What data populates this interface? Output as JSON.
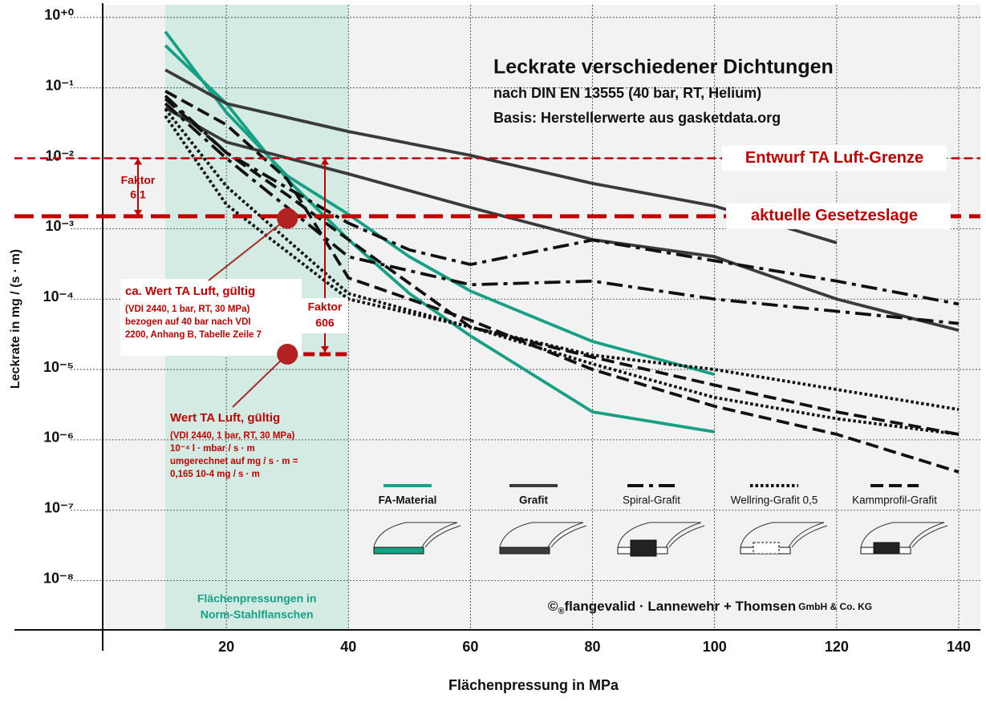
{
  "chart_data": {
    "type": "line",
    "title": "Leckrate verschiedener Dichtungen",
    "subtitle": [
      "nach DIN EN 13555 (40 bar, RT, Helium)",
      "Basis: Herstellerwerte aus gasketdata.org"
    ],
    "xlabel": "Flächenpressung in MPa",
    "ylabel": "Leckrate in mg / (s · m)",
    "xlim": [
      0,
      140
    ],
    "ylim": [
      2e-09,
      1.4
    ],
    "log_y": true,
    "grid": true,
    "xticks": [
      20,
      40,
      60,
      80,
      100,
      120,
      140
    ],
    "yticks": [
      {
        "value": 1,
        "label": "10⁺⁰"
      },
      {
        "value": 0.1,
        "label": "10⁻¹"
      },
      {
        "value": 0.01,
        "label": "10⁻²"
      },
      {
        "value": 0.001,
        "label": "10⁻³"
      },
      {
        "value": 0.0001,
        "label": "10⁻⁴"
      },
      {
        "value": 1e-05,
        "label": "10⁻⁵"
      },
      {
        "value": 1e-06,
        "label": "10⁻⁶"
      },
      {
        "value": 1e-07,
        "label": "10⁻⁷"
      },
      {
        "value": 1e-08,
        "label": "10⁻⁸"
      }
    ],
    "shade": {
      "xlim": [
        10,
        40
      ],
      "color": "#d3ebe3",
      "label": [
        "Flächenpressungen in",
        "Norm-Stahlflanschen"
      ]
    },
    "series": [
      {
        "name": "FA-Material",
        "color": "#17a084",
        "dash": "solid",
        "lines": [
          {
            "x": [
              10,
              20,
              30,
              40,
              50,
              60,
              80,
              100
            ],
            "values": [
              0.63,
              0.045,
              0.0056,
              0.0016,
              0.0004,
              0.00013,
              2.5e-05,
              8.5e-06
            ]
          },
          {
            "x": [
              10,
              20,
              30,
              40,
              50,
              60,
              80,
              100
            ],
            "values": [
              0.4,
              0.06,
              0.005,
              0.0007,
              0.00012,
              3e-05,
              2.5e-06,
              1.3e-06
            ]
          }
        ]
      },
      {
        "name": "Grafit",
        "color": "#3a3a3a",
        "dash": "solid",
        "lines": [
          {
            "x": [
              10,
              20,
              40,
              60,
              80,
              100,
              120
            ],
            "values": [
              0.18,
              0.06,
              0.024,
              0.011,
              0.0044,
              0.0021,
              0.00063
            ]
          },
          {
            "x": [
              10,
              20,
              40,
              60,
              80,
              100,
              120,
              140
            ],
            "values": [
              0.052,
              0.017,
              0.006,
              0.002,
              0.0007,
              0.0004,
              0.0001,
              3.6e-05
            ]
          }
        ]
      },
      {
        "name": "Spiral-Grafit",
        "color": "#111111",
        "dash": "dashdot",
        "lines": [
          {
            "x": [
              10,
              20,
              40,
              50,
              60,
              80,
              100,
              120,
              140
            ],
            "values": [
              0.077,
              0.012,
              0.0012,
              0.0005,
              0.00031,
              0.00069,
              0.00035,
              0.00018,
              8.5e-05
            ]
          },
          {
            "x": [
              10,
              20,
              30,
              40,
              60,
              80,
              100,
              140
            ],
            "values": [
              0.06,
              0.01,
              0.002,
              0.0004,
              0.00016,
              0.00018,
              0.0001,
              4.5e-05
            ]
          }
        ]
      },
      {
        "name": "Wellring-Grafit 0,5",
        "color": "#111111",
        "dash": "dotted",
        "lines": [
          {
            "x": [
              10,
              20,
              40,
              60,
              80,
              100,
              140
            ],
            "values": [
              0.04,
              0.0022,
              0.0001,
              4e-05,
              1.6e-05,
              1e-05,
              2.7e-06
            ]
          },
          {
            "x": [
              10,
              20,
              40,
              60,
              80,
              100,
              120,
              140
            ],
            "values": [
              0.05,
              0.004,
              0.00012,
              4e-05,
              1.2e-05,
              4e-06,
              2e-06,
              1.2e-06
            ]
          }
        ]
      },
      {
        "name": "Kammprofil-Grafit",
        "color": "#111111",
        "dash": "dashed",
        "lines": [
          {
            "x": [
              10,
              20,
              30,
              40,
              60,
              80,
              100,
              120,
              140
            ],
            "values": [
              0.07,
              0.012,
              0.003,
              0.0007,
              4e-05,
              1.5e-05,
              6e-06,
              2.5e-06,
              1.2e-06
            ]
          },
          {
            "x": [
              10,
              20,
              30,
              40,
              60,
              80,
              100,
              120,
              140
            ],
            "values": [
              0.09,
              0.03,
              0.005,
              0.0002,
              5e-05,
              1e-05,
              3e-06,
              1.2e-06,
              3.5e-07
            ]
          }
        ]
      }
    ],
    "reference_lines": [
      {
        "value": 0.01,
        "label": "Entwurf TA Luft-Grenze",
        "color": "#c00000"
      },
      {
        "value": 0.0015,
        "label": "aktuelle Gesetzeslage",
        "color": "#c00000"
      }
    ],
    "points": [
      {
        "x": 30,
        "value": 0.0014,
        "color": "#b22222",
        "label": [
          "ca. Wert TA Luft, gültig",
          "(VDI 2440, 1 bar, RT, 30 MPa)",
          "bezogen auf 40 bar nach VDI",
          "2200, Anhang B, Tabelle Zeile 7"
        ]
      },
      {
        "x": 30,
        "value": 1.65e-05,
        "color": "#b22222",
        "label": [
          "Wert TA Luft, gültig",
          "(VDI 2440, 1 bar, RT, 30 MPa)",
          "10⁻⁴ l · mbar / s · m",
          "umgerechnet auf mg / s · m =",
          "0,165 10-4 mg / s · m"
        ]
      }
    ],
    "factors": [
      {
        "label": [
          "Faktor",
          "6,1"
        ]
      },
      {
        "label": [
          "Faktor",
          "606"
        ]
      }
    ],
    "copyright": [
      "©",
      "®",
      "flangevalid · Lannewehr + Thomsen",
      "GmbH & Co. KG"
    ]
  }
}
